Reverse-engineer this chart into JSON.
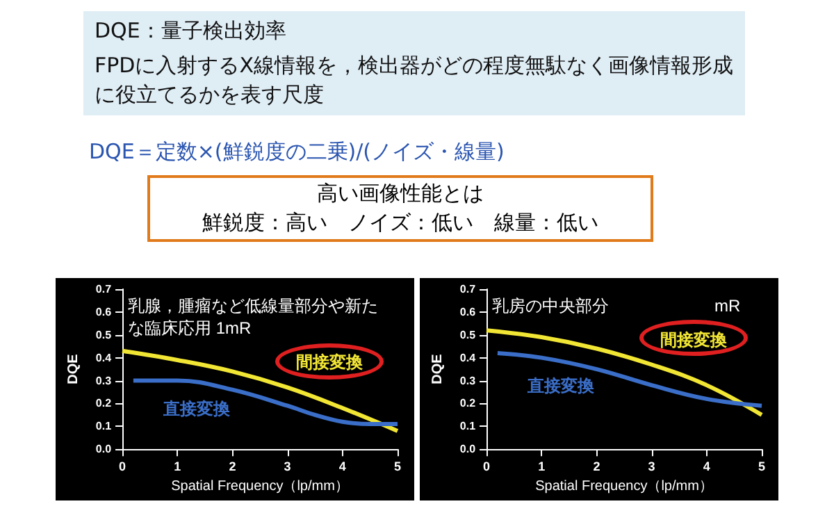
{
  "chart_data": [
    {
      "type": "other",
      "title": "DQE：量子検出効率",
      "annotations": [
        "FPDに入射するX線情報を，検出器がどの程度無駄なく画像情報形成に役立てるかを表す尺度",
        "DQE＝定数×(鮮鋭度の二乗)/(ノイズ・線量)",
        "高い画像性能とは",
        "鮮鋭度：高い　ノイズ：低い　線量：低い"
      ]
    },
    {
      "type": "line",
      "xlabel": "Spatial Frequency（lp/mm）",
      "ylabel": "DQE",
      "xlim": [
        0,
        5
      ],
      "xticks": [
        0,
        1,
        2,
        3,
        4,
        5
      ],
      "ylim": [
        0,
        0.7
      ],
      "yticks": [
        {
          "value": 0,
          "label": "0.0"
        },
        0.1,
        0.2,
        0.3,
        0.4,
        0.5,
        0.6,
        0.7
      ],
      "marker": "none",
      "grid": false,
      "legend": false,
      "annotations": [
        "乳腺，腫瘤など低線量部分や新たな臨床応用 1mR"
      ],
      "series": [
        {
          "name": "間接変換",
          "color": "#f2e634",
          "x": [
            0,
            1,
            2,
            3,
            4,
            5
          ],
          "values": [
            0.43,
            0.39,
            0.34,
            0.27,
            0.18,
            0.08
          ]
        },
        {
          "name": "直接変換",
          "color": "#3a6ec8",
          "x": [
            0.2,
            1,
            2,
            3,
            3.5,
            4,
            4.5,
            5
          ],
          "values": [
            0.3,
            0.3,
            0.26,
            0.19,
            0.15,
            0.12,
            0.11,
            0.11
          ]
        }
      ]
    },
    {
      "type": "line",
      "xlabel": "Spatial Frequency（lp/mm）",
      "ylabel": "DQE",
      "xlim": [
        0,
        5
      ],
      "xticks": [
        0,
        1,
        2,
        3,
        4,
        5
      ],
      "ylim": [
        0,
        0.7
      ],
      "yticks": [
        {
          "value": 0,
          "label": "0.0"
        },
        0.1,
        0.2,
        0.3,
        0.4,
        0.5,
        0.6,
        0.7
      ],
      "marker": "none",
      "grid": false,
      "legend": false,
      "annotations": [
        "乳房の中央部分",
        "mR"
      ],
      "series": [
        {
          "name": "間接変換",
          "color": "#f2e634",
          "x": [
            0,
            1,
            2,
            3,
            4,
            5
          ],
          "values": [
            0.52,
            0.49,
            0.44,
            0.37,
            0.28,
            0.15
          ]
        },
        {
          "name": "直接変換",
          "color": "#3a6ec8",
          "x": [
            0.2,
            1,
            2,
            3,
            4,
            5
          ],
          "values": [
            0.42,
            0.4,
            0.35,
            0.28,
            0.22,
            0.19
          ]
        }
      ]
    }
  ]
}
